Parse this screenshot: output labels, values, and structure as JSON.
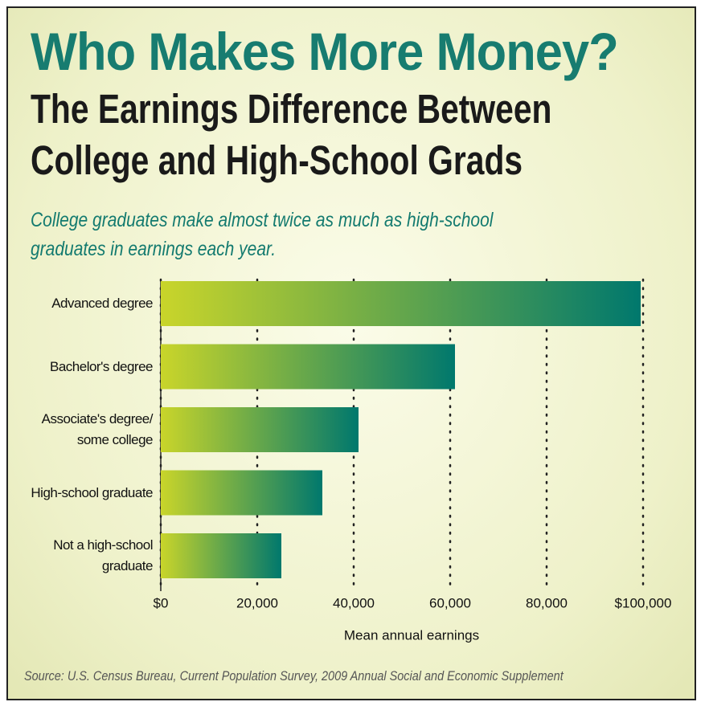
{
  "chart_data": {
    "type": "bar",
    "orientation": "horizontal",
    "title": "Who Makes More Money?",
    "subtitle": "The Earnings Difference Between College and High-School Grads",
    "description": "College graduates make almost twice as much as high-school graduates in earnings each year.",
    "categories": [
      "Advanced degree",
      "Bachelor's degree",
      "Associate's degree/\nsome college",
      "High-school graduate",
      "Not a high-school\ngraduate"
    ],
    "values": [
      99500,
      61000,
      41000,
      33500,
      25000
    ],
    "gradient": [
      "#c9d52a",
      "#00786d"
    ],
    "xlim": [
      0,
      100000
    ],
    "xticks": [
      {
        "value": 0,
        "label": "$0"
      },
      {
        "value": 20000,
        "label": "20,000"
      },
      {
        "value": 40000,
        "label": "40,000"
      },
      {
        "value": 60000,
        "label": "60,000"
      },
      {
        "value": 80000,
        "label": "80,000"
      },
      {
        "value": 100000,
        "label": "$100,000"
      }
    ],
    "xlabel": "Mean annual earnings",
    "grid": true,
    "source": "Source: U.S. Census Bureau, Current Population Survey, 2009 Annual Social and Economic Supplement"
  }
}
